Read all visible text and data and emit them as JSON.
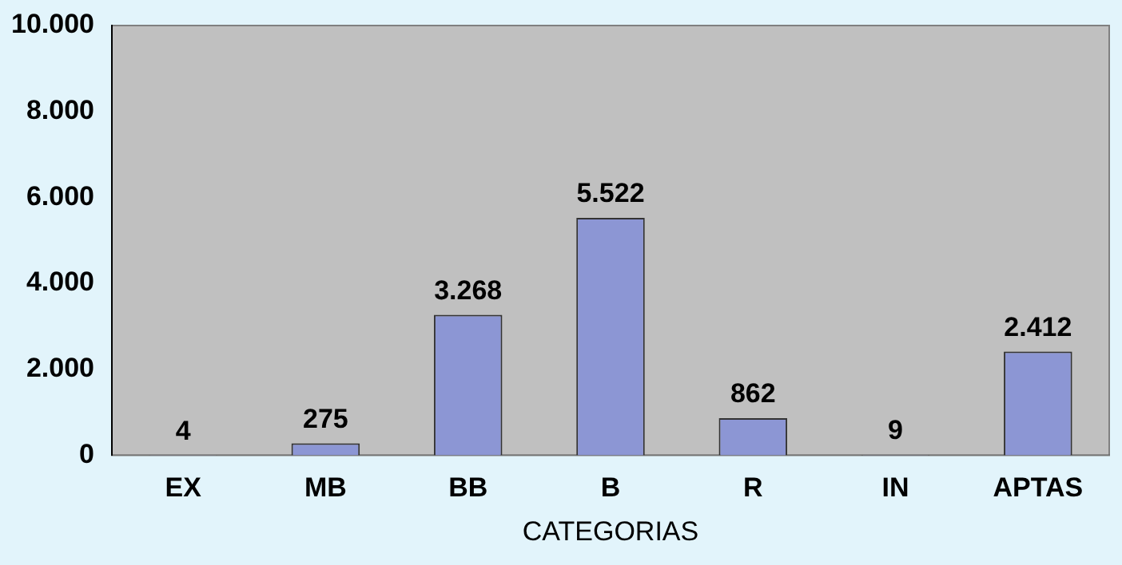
{
  "chart_data": {
    "type": "bar",
    "xlabel": "CATEGORIAS",
    "categories": [
      "EX",
      "MB",
      "BB",
      "B",
      "R",
      "IN",
      "APTAS"
    ],
    "values": [
      4,
      275,
      3268,
      5522,
      862,
      9,
      2412
    ],
    "value_labels": [
      "4",
      "275",
      "3.268",
      "5.522",
      "862",
      "9",
      "2.412"
    ],
    "color": "#8c96d4",
    "ylim": [
      0,
      10000
    ],
    "yticks": [
      {
        "value": 0,
        "label": "0"
      },
      {
        "value": 2000,
        "label": "2.000"
      },
      {
        "value": 4000,
        "label": "4.000"
      },
      {
        "value": 6000,
        "label": "6.000"
      },
      {
        "value": 8000,
        "label": "8.000"
      },
      {
        "value": 10000,
        "label": "10.000"
      }
    ],
    "grid": false
  }
}
